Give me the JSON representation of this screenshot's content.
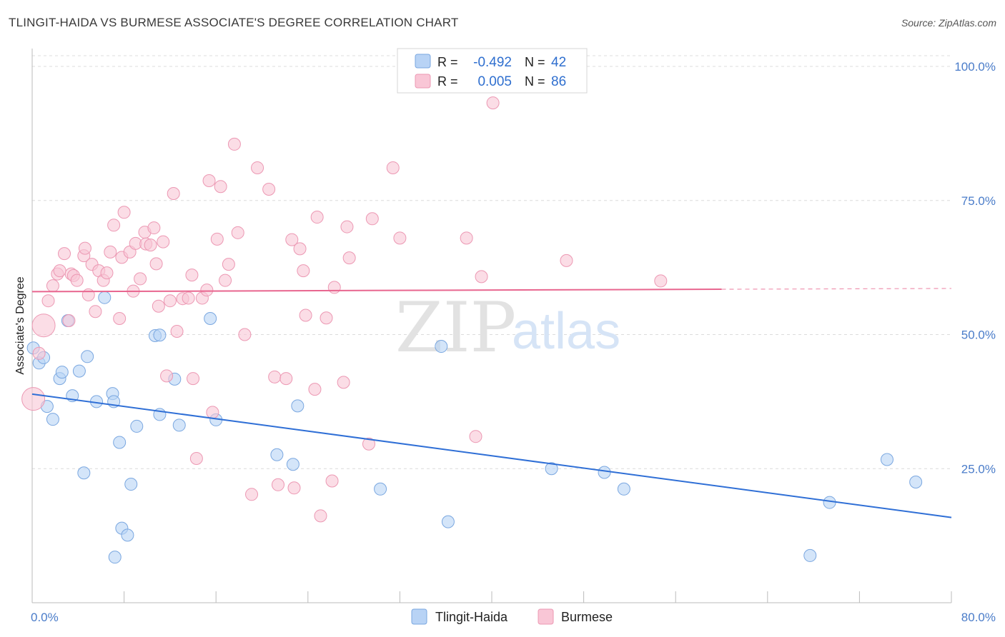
{
  "title": "TLINGIT-HAIDA VS BURMESE ASSOCIATE'S DEGREE CORRELATION CHART",
  "source": "Source: ZipAtlas.com",
  "watermark": {
    "zip": "ZIP",
    "atlas": "atlas"
  },
  "legend": {
    "r_label": "R =",
    "n_label": "N =",
    "rows": [
      {
        "r": "-0.492",
        "n": "42"
      },
      {
        "r": "0.005",
        "n": "86"
      }
    ]
  },
  "colors": {
    "tlingit_fill": "#b8d3f5",
    "tlingit_stroke": "#7aa7e0",
    "tlingit_line": "#2f6fd6",
    "burmese_fill": "#f9c6d6",
    "burmese_stroke": "#ec98b3",
    "burmese_line": "#e8668f",
    "grid": "#dcdcdc",
    "axis": "#bbbbbb"
  },
  "chart_data": {
    "type": "scatter",
    "title": "TLINGIT-HAIDA VS BURMESE ASSOCIATE'S DEGREE CORRELATION CHART",
    "xlabel": "",
    "ylabel": "Associate's Degree",
    "xlim": [
      0,
      80
    ],
    "ylim": [
      0,
      102
    ],
    "x_tick_labels": [
      "0.0%",
      "80.0%"
    ],
    "y_ticks": [
      25,
      50,
      75,
      100
    ],
    "y_tick_labels": [
      "25.0%",
      "50.0%",
      "75.0%",
      "100.0%"
    ],
    "grid": true,
    "legend_position": "top-center",
    "series": [
      {
        "name": "Tlingit-Haida",
        "r": -0.492,
        "n": 42,
        "trend": {
          "x": [
            0,
            80
          ],
          "y": [
            38.9,
            15.9
          ],
          "dashed_from": null
        },
        "points": [
          [
            0.1,
            47.5
          ],
          [
            0.6,
            44.7
          ],
          [
            1.0,
            45.7
          ],
          [
            1.3,
            36.6
          ],
          [
            1.8,
            34.2
          ],
          [
            2.4,
            41.8
          ],
          [
            2.6,
            43.0
          ],
          [
            3.1,
            52.6
          ],
          [
            3.5,
            38.6
          ],
          [
            4.1,
            43.2
          ],
          [
            4.5,
            24.2
          ],
          [
            4.8,
            45.9
          ],
          [
            5.6,
            37.5
          ],
          [
            6.3,
            56.9
          ],
          [
            7.0,
            39.0
          ],
          [
            7.1,
            37.5
          ],
          [
            7.6,
            29.9
          ],
          [
            7.8,
            13.9
          ],
          [
            8.3,
            12.6
          ],
          [
            8.6,
            22.1
          ],
          [
            9.1,
            32.9
          ],
          [
            10.7,
            49.8
          ],
          [
            11.1,
            49.9
          ],
          [
            11.1,
            35.1
          ],
          [
            12.4,
            41.7
          ],
          [
            12.8,
            33.1
          ],
          [
            15.5,
            53.0
          ],
          [
            16.0,
            34.1
          ],
          [
            21.3,
            27.6
          ],
          [
            23.1,
            36.7
          ],
          [
            22.7,
            25.8
          ],
          [
            30.3,
            21.2
          ],
          [
            35.6,
            47.8
          ],
          [
            36.2,
            15.1
          ],
          [
            45.2,
            25.0
          ],
          [
            49.8,
            24.3
          ],
          [
            51.5,
            21.2
          ],
          [
            67.7,
            8.8
          ],
          [
            69.4,
            18.7
          ],
          [
            74.4,
            26.7
          ],
          [
            76.9,
            22.5
          ],
          [
            7.2,
            8.5
          ]
        ]
      },
      {
        "name": "Burmese",
        "r": 0.005,
        "n": 86,
        "trend": {
          "x": [
            0,
            80
          ],
          "y": [
            58.0,
            58.6
          ],
          "dashed_from": 60
        },
        "points": [
          [
            0.1,
            38.0
          ],
          [
            0.6,
            46.5
          ],
          [
            1.0,
            51.7
          ],
          [
            1.4,
            56.3
          ],
          [
            1.8,
            59.1
          ],
          [
            2.2,
            61.3
          ],
          [
            2.4,
            61.9
          ],
          [
            2.8,
            65.1
          ],
          [
            3.2,
            52.6
          ],
          [
            3.4,
            61.3
          ],
          [
            3.6,
            61.0
          ],
          [
            3.9,
            60.1
          ],
          [
            4.5,
            64.7
          ],
          [
            4.6,
            66.1
          ],
          [
            4.9,
            57.4
          ],
          [
            5.2,
            63.1
          ],
          [
            5.5,
            54.3
          ],
          [
            5.8,
            61.9
          ],
          [
            6.2,
            60.1
          ],
          [
            6.5,
            61.5
          ],
          [
            6.8,
            65.4
          ],
          [
            7.1,
            70.4
          ],
          [
            7.6,
            53.0
          ],
          [
            7.8,
            64.4
          ],
          [
            8.0,
            72.8
          ],
          [
            8.5,
            65.4
          ],
          [
            8.8,
            58.1
          ],
          [
            9.0,
            67.0
          ],
          [
            9.4,
            60.4
          ],
          [
            9.8,
            69.1
          ],
          [
            9.9,
            66.9
          ],
          [
            10.3,
            66.7
          ],
          [
            10.6,
            69.9
          ],
          [
            10.8,
            63.2
          ],
          [
            11.0,
            55.3
          ],
          [
            11.4,
            67.3
          ],
          [
            11.7,
            42.3
          ],
          [
            12.0,
            56.3
          ],
          [
            12.3,
            76.3
          ],
          [
            12.6,
            50.6
          ],
          [
            13.1,
            56.7
          ],
          [
            13.6,
            56.8
          ],
          [
            13.9,
            61.1
          ],
          [
            14.0,
            41.8
          ],
          [
            14.3,
            26.9
          ],
          [
            14.8,
            56.8
          ],
          [
            15.2,
            58.3
          ],
          [
            15.4,
            78.7
          ],
          [
            15.7,
            35.5
          ],
          [
            16.1,
            67.8
          ],
          [
            16.4,
            77.6
          ],
          [
            16.8,
            60.1
          ],
          [
            17.1,
            63.1
          ],
          [
            17.6,
            85.5
          ],
          [
            17.9,
            69.0
          ],
          [
            18.5,
            50.0
          ],
          [
            19.1,
            20.2
          ],
          [
            19.6,
            81.1
          ],
          [
            20.6,
            77.1
          ],
          [
            21.1,
            42.1
          ],
          [
            21.4,
            22.0
          ],
          [
            22.1,
            41.8
          ],
          [
            22.6,
            67.7
          ],
          [
            22.8,
            21.4
          ],
          [
            23.3,
            66.0
          ],
          [
            23.6,
            61.9
          ],
          [
            23.8,
            53.6
          ],
          [
            24.6,
            39.8
          ],
          [
            24.8,
            71.9
          ],
          [
            25.1,
            16.2
          ],
          [
            25.6,
            53.1
          ],
          [
            26.1,
            22.7
          ],
          [
            26.3,
            58.8
          ],
          [
            27.1,
            41.1
          ],
          [
            27.4,
            70.1
          ],
          [
            27.6,
            64.3
          ],
          [
            29.3,
            29.6
          ],
          [
            29.6,
            71.6
          ],
          [
            31.4,
            81.1
          ],
          [
            32.0,
            68.0
          ],
          [
            37.8,
            68.0
          ],
          [
            39.1,
            60.8
          ],
          [
            40.1,
            93.2
          ],
          [
            46.5,
            63.8
          ],
          [
            54.7,
            60.0
          ],
          [
            38.6,
            31.0
          ]
        ]
      }
    ]
  },
  "bottom_legend": [
    {
      "label": "Tlingit-Haida"
    },
    {
      "label": "Burmese"
    }
  ]
}
